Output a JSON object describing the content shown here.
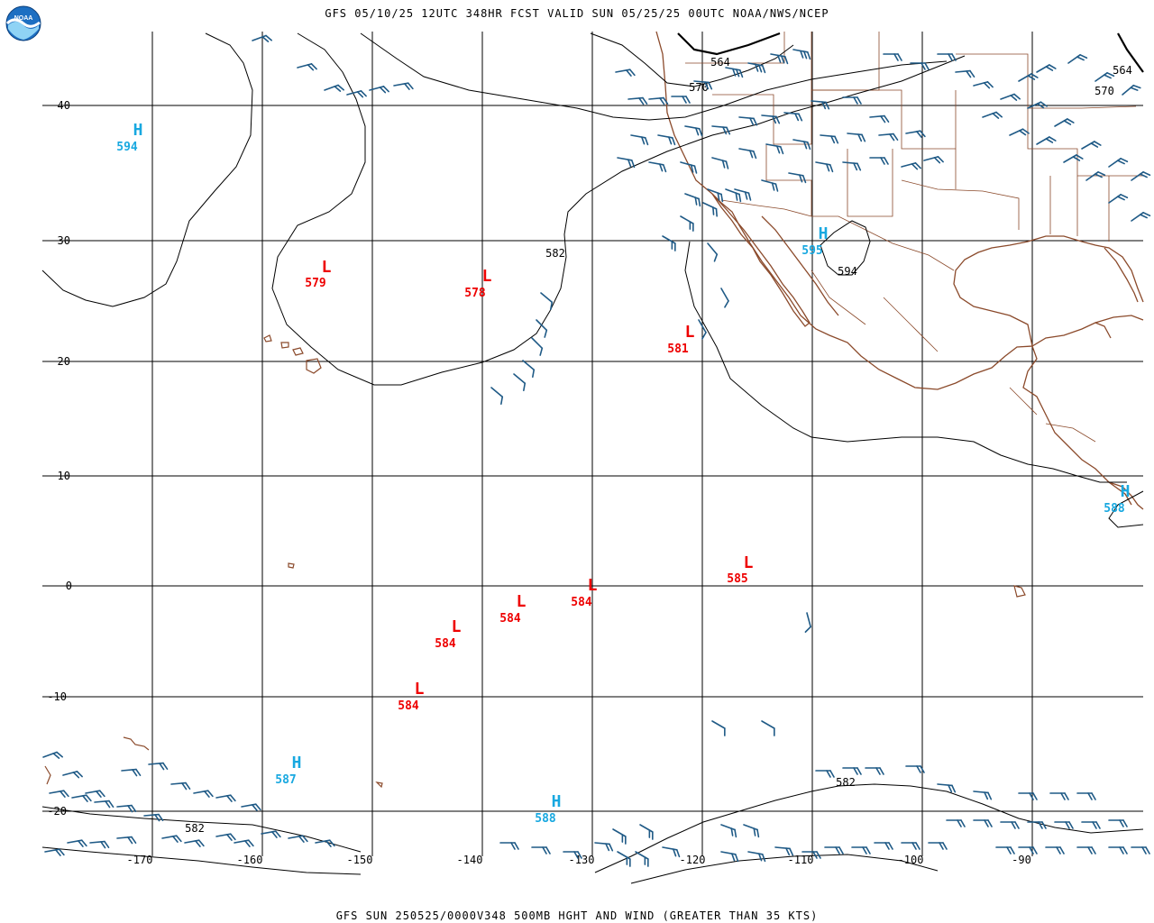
{
  "header": {
    "title": "GFS 05/10/25 12UTC 348HR FCST VALID SUN 05/25/25 00UTC NOAA/NWS/NCEP",
    "logo_text": "NOAA"
  },
  "footer": {
    "caption": "GFS SUN 250525/0000V348 500MB HGHT AND WIND (GREATER THAN 35 KTS)"
  },
  "colors": {
    "low": "#ee0000",
    "high": "#18a8e0",
    "barb": "#1f5a86",
    "coast": "#8b4a2b",
    "contour": "#000000",
    "grid": "#000000"
  },
  "map": {
    "lat_labels": [
      "40",
      "30",
      "20",
      "10",
      "0",
      "-10",
      "-20"
    ],
    "lon_labels": [
      "-170",
      "-160",
      "-150",
      "-140",
      "-130",
      "-120",
      "-110",
      "-100",
      "-90"
    ],
    "contour_labels": [
      "564",
      "570",
      "582",
      "594",
      "582",
      "570",
      "564"
    ],
    "lows": [
      {
        "letter": "L",
        "value": "579"
      },
      {
        "letter": "L",
        "value": "578"
      },
      {
        "letter": "L",
        "value": "581"
      },
      {
        "letter": "L",
        "value": "585"
      },
      {
        "letter": "L",
        "value": "584"
      },
      {
        "letter": "L",
        "value": "584"
      },
      {
        "letter": "L",
        "value": "584"
      },
      {
        "letter": "L",
        "value": "584"
      }
    ],
    "highs": [
      {
        "letter": "H",
        "value": "594"
      },
      {
        "letter": "H",
        "value": "595"
      },
      {
        "letter": "H",
        "value": "588"
      },
      {
        "letter": "H",
        "value": "587"
      },
      {
        "letter": "H",
        "value": "588"
      }
    ]
  }
}
